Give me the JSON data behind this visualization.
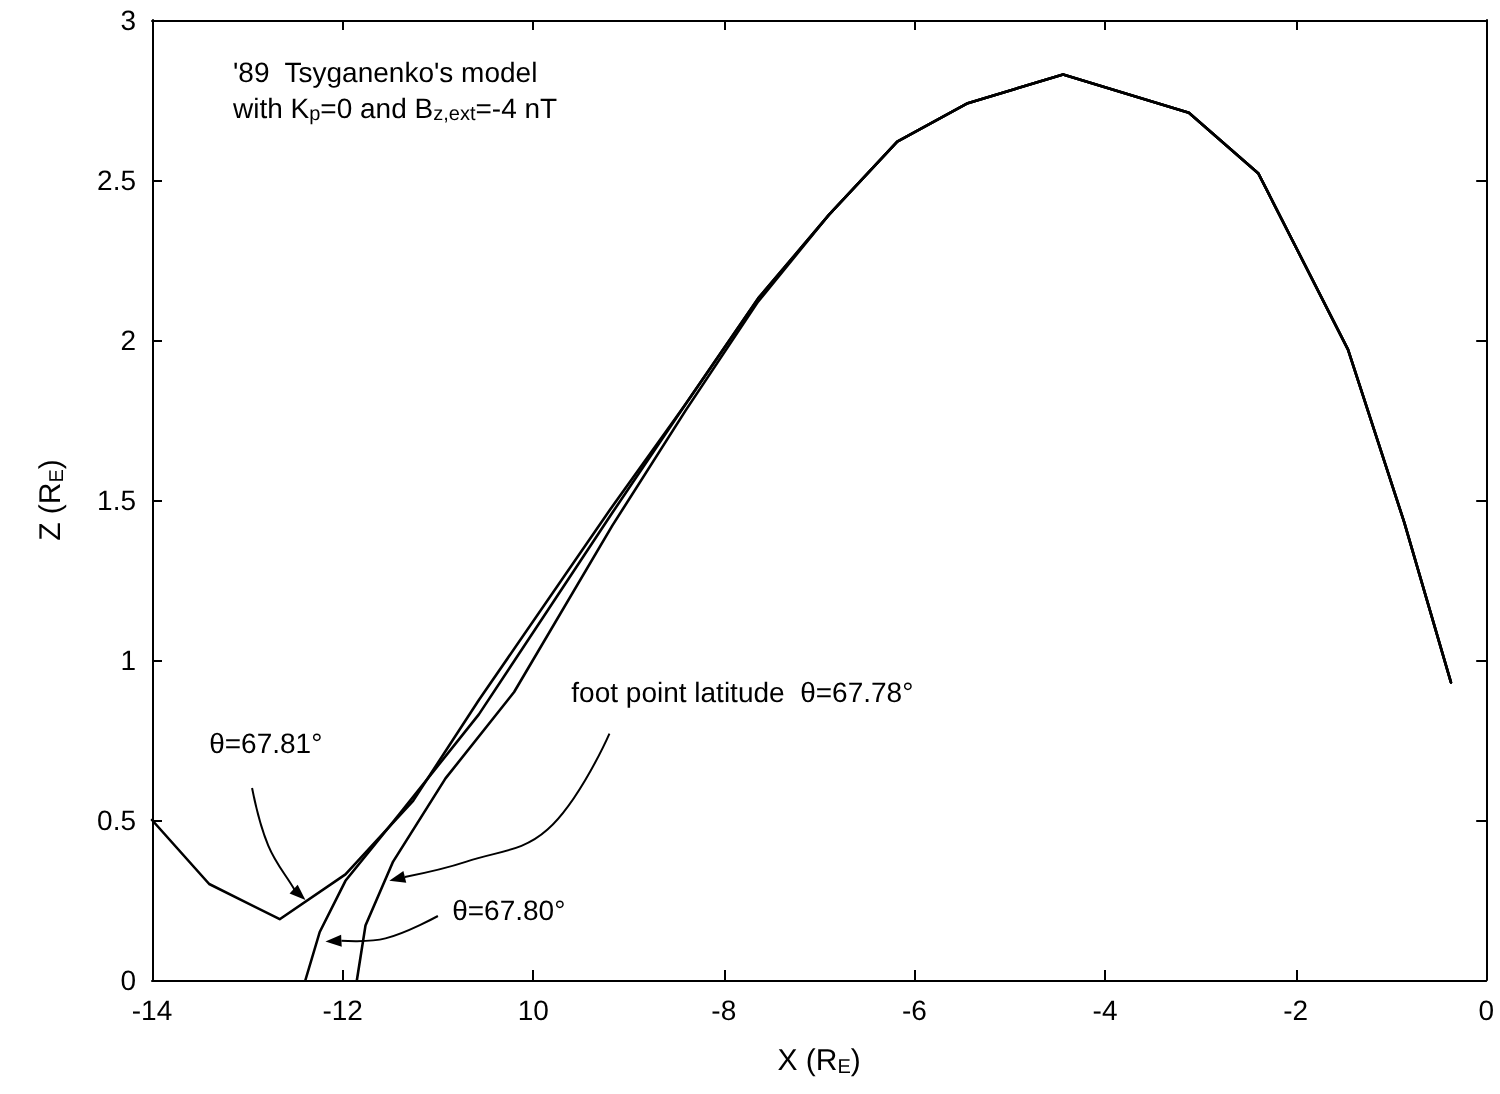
{
  "chart_data": {
    "type": "line",
    "xlabel": "X (R$_{E}$)",
    "ylabel": "Z (R$_{E}$)",
    "xlim": [
      -14,
      0
    ],
    "ylim": [
      0,
      3
    ],
    "xticks": [
      -14,
      -12,
      {
        "value": -10,
        "label": "10"
      },
      -8,
      -6,
      -4,
      -2,
      0
    ],
    "yticks": [
      0,
      0.5,
      1,
      1.5,
      2,
      2.5,
      3
    ],
    "grid": false,
    "marker": "none",
    "line_style": "solid",
    "series": [
      {
        "color": "#000000",
        "x": [
          -14,
          -13.4,
          -12.66,
          -11.97,
          -11.26,
          -10.57,
          -9.17,
          -8.4,
          -7.64,
          -6.9,
          -6.18,
          -5.44,
          -4.44,
          -3.12,
          -2.39,
          -1.45,
          -0.86,
          -0.37
        ],
        "values": [
          0.5,
          0.3,
          0.19,
          0.33,
          0.56,
          0.875,
          1.48,
          1.8,
          2.13,
          2.39,
          2.62,
          2.74,
          2.83,
          2.71,
          2.52,
          1.97,
          1.43,
          0.93
        ]
      },
      {
        "color": "#000000",
        "x": [
          -12.39,
          -12.24,
          -11.97,
          -11.4,
          -10.57,
          -9.17,
          -8.4,
          -7.64,
          -6.9,
          -6.18,
          -5.44,
          -4.44,
          -3.12,
          -2.39,
          -1.45,
          -0.86,
          -0.37
        ],
        "values": [
          0,
          0.15,
          0.31,
          0.52,
          0.83,
          1.46,
          1.8,
          2.13,
          2.39,
          2.62,
          2.74,
          2.83,
          2.71,
          2.52,
          1.97,
          1.43,
          0.93
        ]
      },
      {
        "color": "#000000",
        "x": [
          -11.85,
          -11.76,
          -11.47,
          -10.92,
          -10.2,
          -9.17,
          -8.4,
          -7.64,
          -6.9,
          -6.18,
          -5.44,
          -4.44,
          -3.12,
          -2.39,
          -1.45,
          -0.86,
          -0.37
        ],
        "values": [
          0,
          0.17,
          0.37,
          0.63,
          0.9,
          1.42,
          1.78,
          2.12,
          2.39,
          2.62,
          2.74,
          2.83,
          2.71,
          2.52,
          1.97,
          1.43,
          0.93
        ]
      }
    ],
    "annotations": [
      "'89  Tsyganenko's model\nwith K$_{p}$=0 and B$_{z,ext}$=-4 nT",
      {
        "text": "θ=67.81°",
        "x": -12.39,
        "y": 0.25
      },
      {
        "text": "θ=67.80°",
        "x": -12.18,
        "y": 0.12
      },
      {
        "text": "foot point latitude  θ=67.78°",
        "x": -11.51,
        "y": 0.31
      }
    ]
  }
}
